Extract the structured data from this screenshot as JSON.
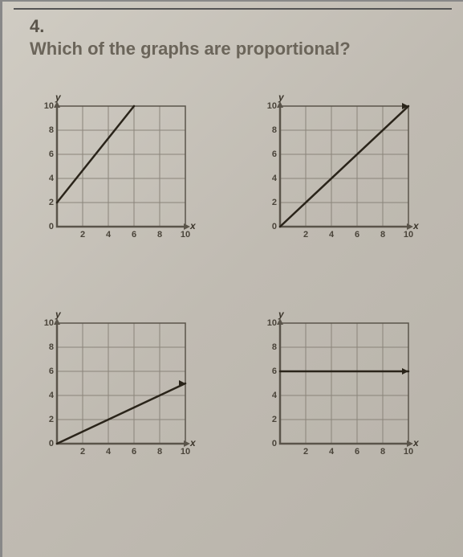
{
  "question": {
    "number": "4.",
    "text": "Which of the graphs are proportional?"
  },
  "axis": {
    "y_name": "y",
    "x_name": "x",
    "xlim": [
      0,
      10
    ],
    "ylim": [
      0,
      10
    ],
    "tick_step": 2,
    "y_ticks": [
      "10",
      "8",
      "6",
      "4",
      "2",
      "0"
    ],
    "x_ticks": [
      "2",
      "4",
      "6",
      "8",
      "10"
    ]
  },
  "style": {
    "background_color": "#c4c0b8",
    "grid_color": "#8a847a",
    "grid_border_color": "#5a544a",
    "line_color": "#2a241a",
    "line_width": 2.5,
    "text_color": "#5a544a",
    "label_fontsize": 11
  },
  "charts": [
    {
      "id": "A",
      "type": "line",
      "points": [
        [
          0,
          2
        ],
        [
          6,
          10
        ]
      ],
      "proportional": false
    },
    {
      "id": "B",
      "type": "line",
      "points": [
        [
          0,
          0
        ],
        [
          10,
          10
        ]
      ],
      "proportional": true
    },
    {
      "id": "C",
      "type": "line",
      "points": [
        [
          0,
          0
        ],
        [
          10,
          5
        ]
      ],
      "proportional": true
    },
    {
      "id": "D",
      "type": "line",
      "points": [
        [
          0,
          6
        ],
        [
          10,
          6
        ]
      ],
      "proportional": false
    }
  ]
}
